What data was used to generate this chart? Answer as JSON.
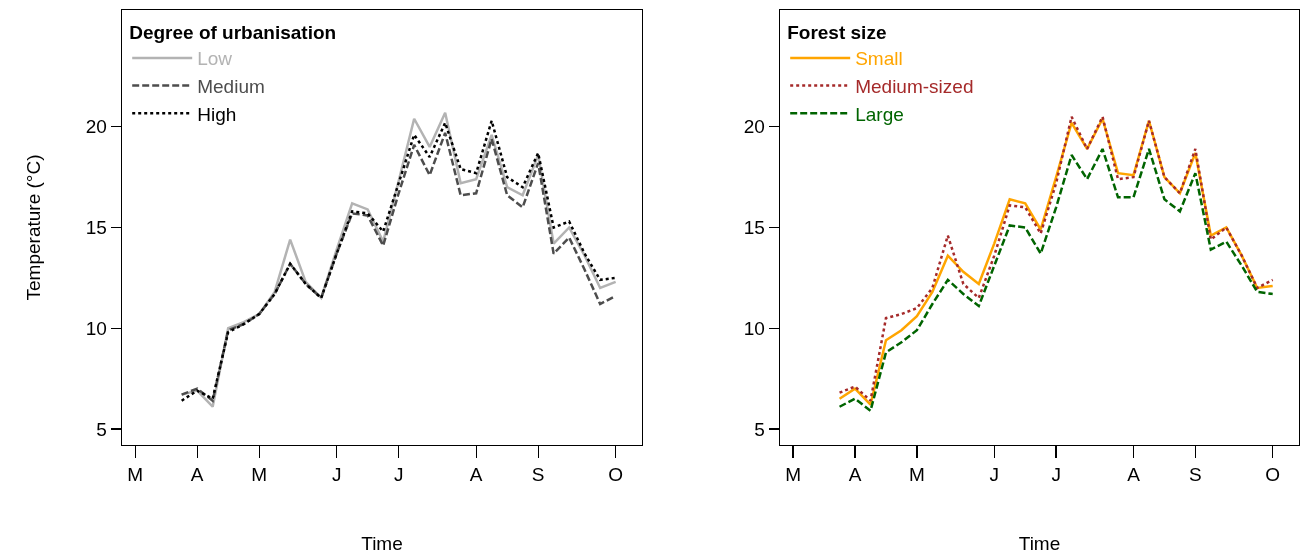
{
  "chart_data": [
    {
      "type": "line",
      "xlabel": "Time",
      "ylabel": "Temperature (°C)",
      "legend_title": "Degree of urbanisation",
      "legend": "top left",
      "grid": false,
      "marker": "none",
      "categories": [
        "M",
        null,
        null,
        null,
        "A",
        null,
        null,
        null,
        "M",
        null,
        null,
        null,
        null,
        "J",
        null,
        null,
        null,
        "J",
        null,
        null,
        null,
        null,
        "A",
        null,
        null,
        null,
        "S",
        null,
        null,
        null,
        null,
        "O"
      ],
      "ylim": [
        4.2,
        25.8
      ],
      "yticks": [
        5,
        10,
        15,
        20
      ],
      "series": [
        {
          "name": "Low",
          "color": "#b3b3b3",
          "line_style": "solid",
          "values": [
            null,
            null,
            null,
            6.7,
            6.9,
            6.1,
            10.0,
            10.3,
            10.7,
            11.8,
            14.4,
            12.3,
            11.5,
            13.9,
            16.2,
            15.9,
            14.3,
            17.3,
            20.4,
            19.0,
            20.7,
            17.2,
            17.4,
            19.6,
            17.0,
            16.6,
            18.6,
            14.2,
            15.0,
            13.6,
            12.0,
            12.3
          ]
        },
        {
          "name": "Medium",
          "color": "#4d4d4d",
          "line_style": "dashed",
          "values": [
            null,
            null,
            null,
            6.7,
            7.0,
            6.4,
            9.9,
            10.2,
            10.7,
            11.7,
            13.2,
            12.2,
            11.5,
            13.7,
            15.7,
            15.6,
            14.1,
            16.7,
            19.1,
            17.6,
            19.7,
            16.6,
            16.7,
            19.4,
            16.6,
            16.0,
            18.2,
            13.7,
            14.5,
            12.9,
            11.2,
            11.6
          ]
        },
        {
          "name": "High",
          "color": "#000000",
          "line_style": "dotted",
          "values": [
            null,
            null,
            null,
            6.4,
            6.9,
            6.5,
            9.8,
            10.2,
            10.7,
            11.7,
            13.2,
            12.2,
            11.5,
            13.7,
            15.8,
            15.7,
            14.8,
            17.2,
            19.6,
            18.5,
            20.2,
            17.9,
            17.7,
            20.3,
            17.5,
            17.0,
            18.7,
            15.0,
            15.3,
            13.7,
            12.4,
            12.5
          ]
        }
      ]
    },
    {
      "type": "line",
      "xlabel": "Time",
      "legend_title": "Forest size",
      "legend": "top left",
      "grid": false,
      "marker": "none",
      "categories": [
        "M",
        null,
        null,
        null,
        "A",
        null,
        null,
        null,
        "M",
        null,
        null,
        null,
        null,
        "J",
        null,
        null,
        null,
        "J",
        null,
        null,
        null,
        null,
        "A",
        null,
        null,
        null,
        "S",
        null,
        null,
        null,
        null,
        "O"
      ],
      "ylim": [
        4.2,
        25.8
      ],
      "yticks": [
        5,
        10,
        15,
        20
      ],
      "series": [
        {
          "name": "Small",
          "color": "#ffa500",
          "line_style": "solid",
          "values": [
            null,
            null,
            null,
            6.5,
            7.0,
            6.2,
            9.4,
            9.9,
            10.6,
            11.8,
            13.6,
            12.8,
            12.2,
            14.2,
            16.4,
            16.2,
            14.9,
            17.5,
            20.2,
            18.9,
            20.4,
            17.7,
            17.6,
            20.3,
            17.5,
            16.7,
            18.7,
            14.6,
            15.0,
            13.6,
            12.0,
            12.1
          ]
        },
        {
          "name": "Medium-sized",
          "color": "#a52a2a",
          "line_style": "dotted",
          "values": [
            null,
            null,
            null,
            6.8,
            7.1,
            6.4,
            10.5,
            10.7,
            11.0,
            12.0,
            14.6,
            12.2,
            11.5,
            13.6,
            16.1,
            16.0,
            14.7,
            17.2,
            20.5,
            18.9,
            20.5,
            17.4,
            17.5,
            20.3,
            17.5,
            16.7,
            18.9,
            14.4,
            15.0,
            13.6,
            12.0,
            12.4
          ]
        },
        {
          "name": "Large",
          "color": "#006400",
          "line_style": "dashed",
          "values": [
            null,
            null,
            null,
            6.1,
            6.5,
            5.9,
            8.8,
            9.3,
            9.9,
            11.2,
            12.4,
            11.7,
            11.1,
            13.1,
            15.1,
            15.0,
            13.7,
            16.0,
            18.6,
            17.4,
            18.9,
            16.5,
            16.5,
            18.9,
            16.4,
            15.8,
            17.7,
            13.9,
            14.3,
            13.1,
            11.8,
            11.7
          ]
        }
      ]
    }
  ]
}
